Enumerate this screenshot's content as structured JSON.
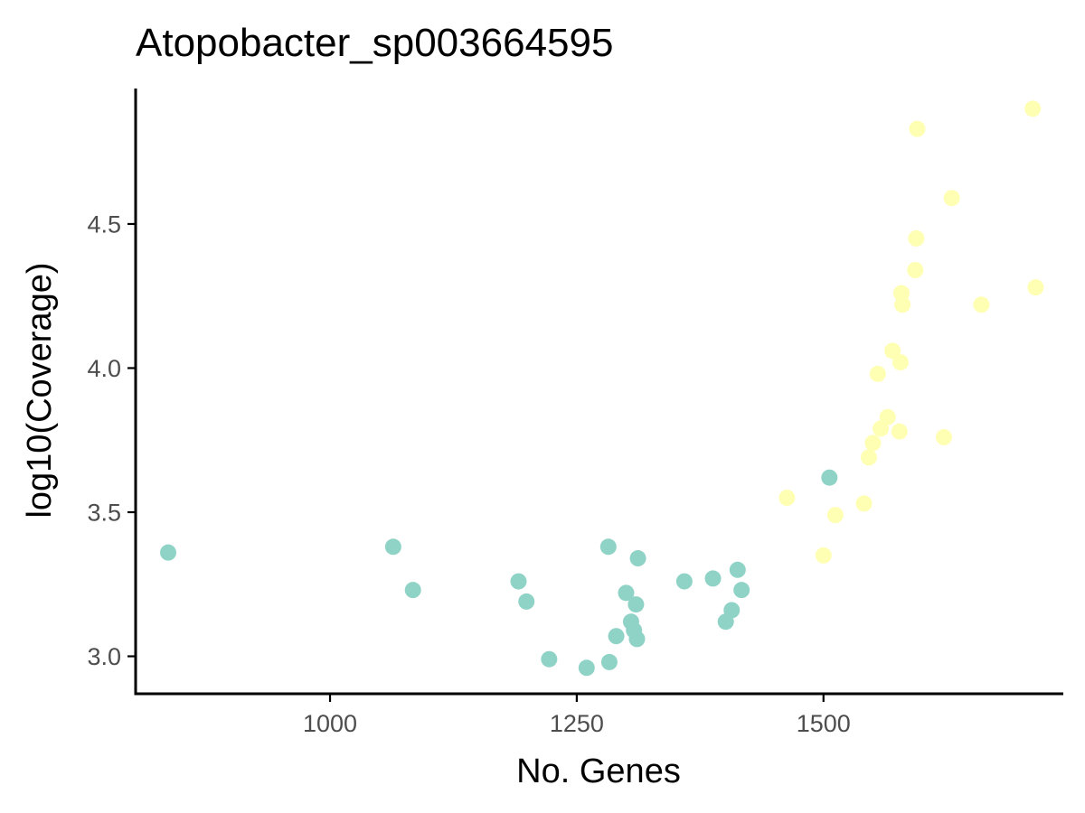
{
  "chart_data": {
    "type": "scatter",
    "title": "Atopobacter_sp003664595",
    "xlabel": "No. Genes",
    "ylabel": "log10(Coverage)",
    "xlim": [
      803,
      1743
    ],
    "ylim": [
      2.87,
      4.97
    ],
    "x_ticks": [
      1000,
      1250,
      1500
    ],
    "x_tick_labels": [
      "1000",
      "1250",
      "1500"
    ],
    "y_ticks": [
      3.0,
      3.5,
      4.0,
      4.5
    ],
    "y_tick_labels": [
      "3.0",
      "3.5",
      "4.0",
      "4.5"
    ],
    "grid": false,
    "legend": "none",
    "series": [
      {
        "color": "#8fd3c7",
        "points": [
          [
            836,
            3.36
          ],
          [
            1064,
            3.38
          ],
          [
            1084,
            3.23
          ],
          [
            1191,
            3.26
          ],
          [
            1199,
            3.19
          ],
          [
            1222,
            2.99
          ],
          [
            1260,
            2.96
          ],
          [
            1282,
            3.38
          ],
          [
            1283,
            2.98
          ],
          [
            1290,
            3.07
          ],
          [
            1300,
            3.22
          ],
          [
            1305,
            3.12
          ],
          [
            1308,
            3.09
          ],
          [
            1310,
            3.18
          ],
          [
            1311,
            3.06
          ],
          [
            1312,
            3.34
          ],
          [
            1359,
            3.26
          ],
          [
            1388,
            3.27
          ],
          [
            1401,
            3.12
          ],
          [
            1407,
            3.16
          ],
          [
            1413,
            3.3
          ],
          [
            1417,
            3.23
          ],
          [
            1506,
            3.62
          ]
        ]
      },
      {
        "color": "#ffffb3",
        "points": [
          [
            1463,
            3.55
          ],
          [
            1500,
            3.35
          ],
          [
            1512,
            3.49
          ],
          [
            1541,
            3.53
          ],
          [
            1546,
            3.69
          ],
          [
            1550,
            3.74
          ],
          [
            1555,
            3.98
          ],
          [
            1558,
            3.79
          ],
          [
            1565,
            3.83
          ],
          [
            1570,
            4.06
          ],
          [
            1577,
            3.78
          ],
          [
            1578,
            4.02
          ],
          [
            1579,
            4.26
          ],
          [
            1580,
            4.22
          ],
          [
            1593,
            4.34
          ],
          [
            1594,
            4.45
          ],
          [
            1595,
            4.83
          ],
          [
            1622,
            3.76
          ],
          [
            1630,
            4.59
          ],
          [
            1660,
            4.22
          ],
          [
            1712,
            4.9
          ],
          [
            1715,
            4.28
          ]
        ]
      }
    ]
  }
}
